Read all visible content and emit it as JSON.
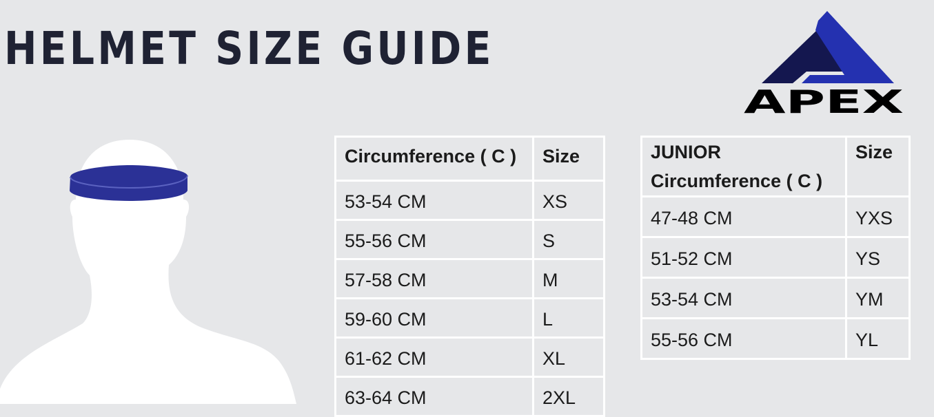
{
  "title": "HELMET SIZE GUIDE",
  "logo": {
    "text": "APEX",
    "colors": {
      "dark": "#14174f",
      "light": "#2431b0",
      "text": "#000000"
    }
  },
  "band_color": "#2b3196",
  "adult_table": {
    "headers": [
      "Circumference ( C )",
      "Size"
    ],
    "rows": [
      [
        "53-54 CM",
        "XS"
      ],
      [
        "55-56 CM",
        "S"
      ],
      [
        "57-58 CM",
        "M"
      ],
      [
        "59-60 CM",
        "L"
      ],
      [
        "61-62 CM",
        "XL"
      ],
      [
        "63-64 CM",
        "2XL"
      ]
    ]
  },
  "junior_table": {
    "headers": [
      "JUNIOR",
      "Circumference ( C )",
      "Size"
    ],
    "rows": [
      [
        "47-48 CM",
        "YXS"
      ],
      [
        "51-52 CM",
        "YS"
      ],
      [
        "53-54 CM",
        "YM"
      ],
      [
        "55-56 CM",
        "YL"
      ]
    ]
  }
}
